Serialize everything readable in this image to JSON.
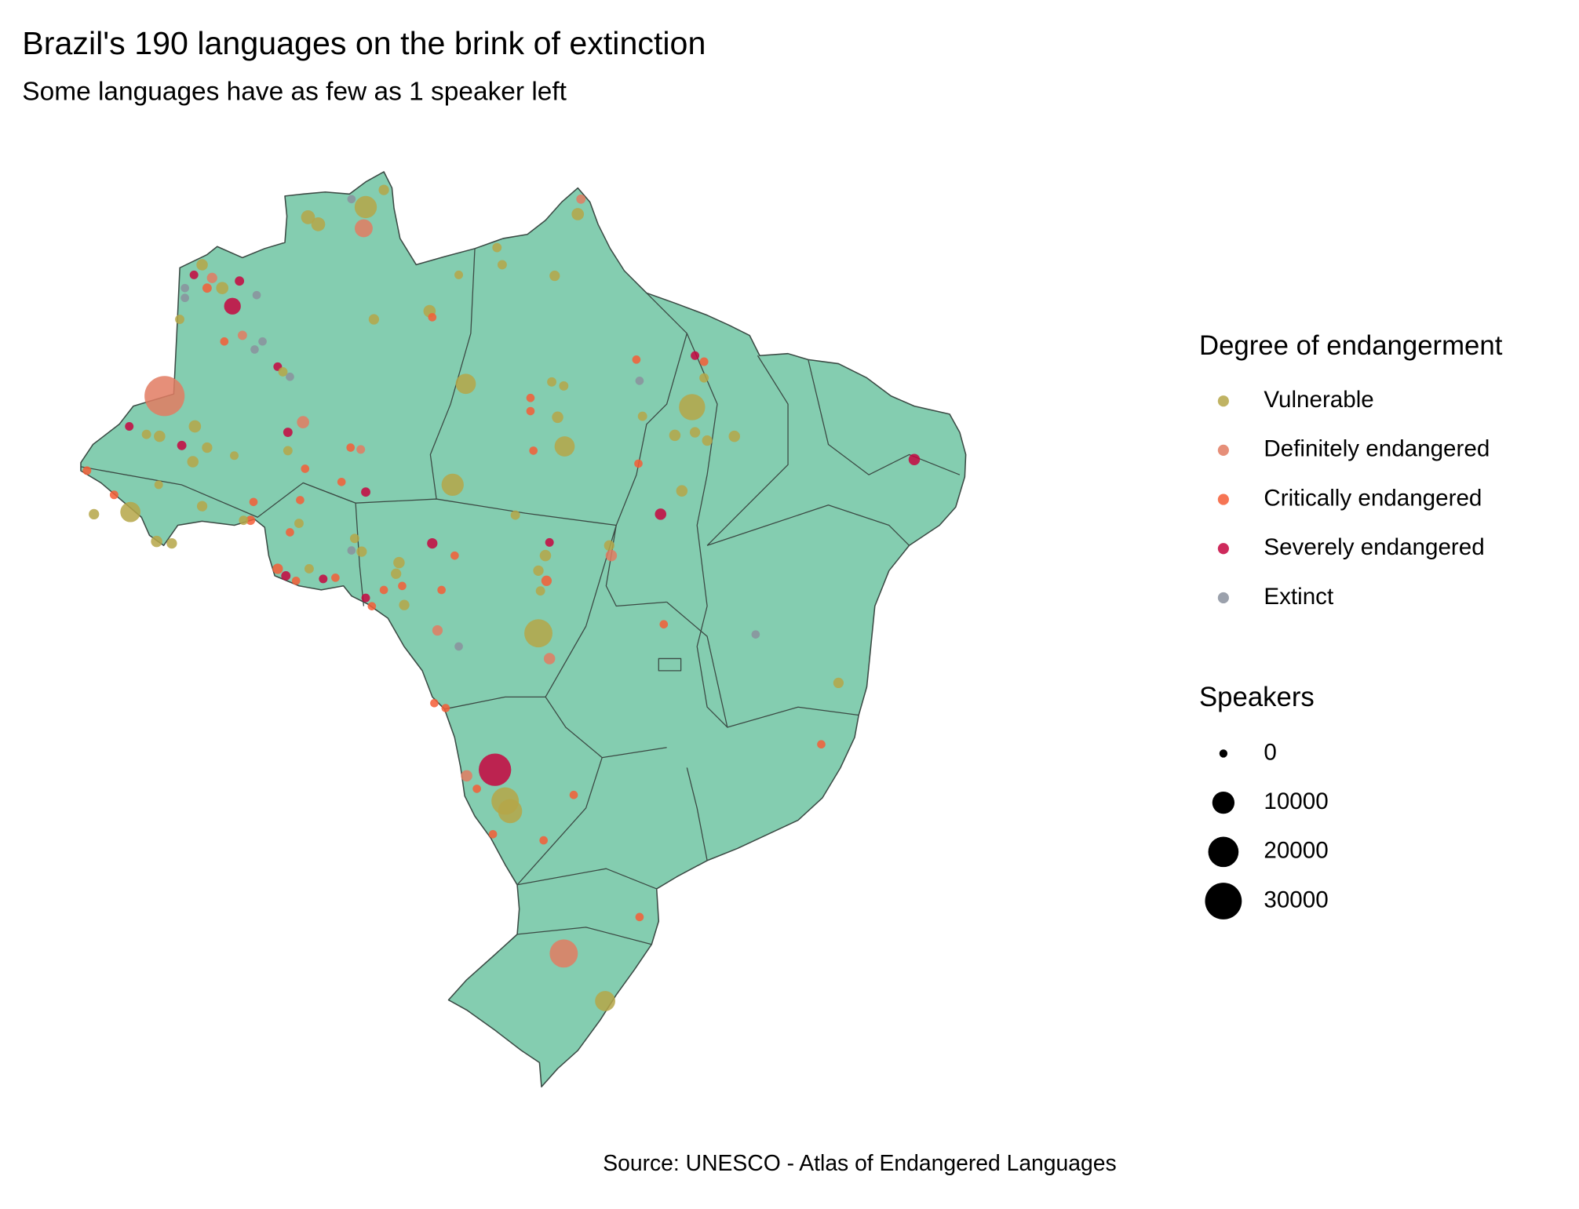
{
  "chart_data": {
    "type": "map",
    "title": "Brazil's 190 languages on the brink of extinction",
    "subtitle": "Some languages have as few as 1 speaker left",
    "caption": "Source: UNESCO - Atlas of Endangered Languages",
    "color_legend_title": "Degree of endangerment",
    "categories": [
      "Vulnerable",
      "Definitely endangered",
      "Critically endangered",
      "Severely endangered",
      "Extinct"
    ],
    "colors": [
      "#b5a648",
      "#e27b62",
      "#f45d36",
      "#c5053f",
      "#8a919e"
    ],
    "size_legend_title": "Speakers",
    "size_ticks": [
      0,
      10000,
      20000,
      30000
    ],
    "points": {
      "lon": [
        -63.87,
        -63.42,
        -61.32,
        -61.41,
        -60.52,
        -61.95,
        -51.95,
        -51.81,
        -55.52,
        -55.29,
        -52.97,
        -57.21,
        -58.5,
        -58.38,
        -60.96,
        -68.55,
        -68.91,
        -67.21,
        -66.9,
        -68.11,
        -68.33,
        -67.66,
        -69.31,
        -69.31,
        -66.14,
        -69.54,
        -66.77,
        -67.57,
        -65.88,
        -66.23,
        -70.21,
        -65.21,
        -64.67,
        -64.98,
        -64.09,
        -64.76,
        -68.87,
        -71.77,
        -71.01,
        -70.43,
        -69.45,
        -68.33,
        -68.96,
        -67.13,
        -64.76,
        -64.0,
        -61.99,
        -61.54,
        -61.32,
        -62.39,
        -73.64,
        -72.44,
        -73.33,
        -71.72,
        -70.47,
        -68.55,
        -70.56,
        -69.89,
        -66.28,
        -66.41,
        -66.72,
        -64.22,
        -64.27,
        -64.67,
        -65.21,
        -64.85,
        -64.4,
        -63.82,
        -63.2,
        -62.66,
        -61.81,
        -61.5,
        -61.95,
        -61.32,
        -61.05,
        -60.52,
        -59.85,
        -59.98,
        -59.71,
        -59.62,
        -58.38,
        -57.39,
        -57.97,
        -58.15,
        -57.21,
        -57.48,
        -56.9,
        -54.71,
        -54.04,
        -54.04,
        -53.1,
        -52.57,
        -52.84,
        -52.53,
        -53.91,
        -49.36,
        -49.22,
        -49.09,
        -49.27,
        -46.9,
        -47.66,
        -46.77,
        -46.23,
        -45.03,
        -46.37,
        -46.37,
        -46.77,
        -47.35,
        -48.29,
        -50.56,
        -50.47,
        -53.2,
        -53.38,
        -53.69,
        -53.33,
        -53.6,
        -53.69,
        -53.2,
        -48.15,
        -44.09,
        -37.08,
        -40.43,
        -41.19,
        -58.29,
        -57.79,
        -55.61,
        -56.86,
        -56.41,
        -55.16,
        -54.94,
        -55.7,
        -52.13,
        -53.46,
        -49.22,
        -52.57,
        -50.74
      ],
      "lat": [
        3.37,
        3.07,
        3.8,
        2.9,
        4.53,
        4.14,
        3.5,
        4.14,
        2.08,
        1.35,
        0.88,
        0.92,
        -0.62,
        -0.88,
        -0.97,
        1.35,
        0.92,
        -0.41,
        0.66,
        0.79,
        0.36,
        0.36,
        0.36,
        -0.06,
        0.06,
        -0.97,
        -1.65,
        -1.91,
        -1.91,
        -2.25,
        -4.23,
        -2.98,
        -3.41,
        -3.2,
        -5.34,
        -5.77,
        -5.52,
        -5.52,
        -5.86,
        -5.94,
        -6.33,
        -6.42,
        -7.02,
        -6.76,
        -6.55,
        -7.32,
        -6.42,
        -6.5,
        -8.31,
        -7.88,
        -7.4,
        -8.43,
        -9.25,
        -9.16,
        -8.0,
        -8.91,
        -10.41,
        -10.49,
        -8.73,
        -9.51,
        -9.51,
        -8.65,
        -9.64,
        -10.02,
        -11.57,
        -11.87,
        -12.08,
        -11.57,
        -12.0,
        -11.95,
        -10.28,
        -10.84,
        -10.79,
        -12.81,
        -13.16,
        -12.47,
        -11.31,
        -11.78,
        -12.3,
        -13.11,
        -10.49,
        -11.01,
        -12.47,
        -14.19,
        -14.87,
        -8.0,
        -3.71,
        -9.29,
        -4.31,
        -4.87,
        -3.63,
        -3.8,
        -5.13,
        -6.37,
        -6.55,
        -2.68,
        -3.58,
        -5.09,
        -7.1,
        -4.7,
        -5.9,
        -5.77,
        -6.12,
        -5.94,
        -3.46,
        -2.77,
        -2.51,
        -8.26,
        -9.25,
        -10.58,
        -11.01,
        -10.45,
        -11.01,
        -11.65,
        -12.08,
        -12.51,
        -14.31,
        -15.39,
        -13.93,
        -14.36,
        -6.93,
        -16.42,
        -19.03,
        -17.28,
        -17.49,
        -20.11,
        -20.37,
        -20.92,
        -21.44,
        -21.87,
        -22.85,
        -21.18,
        -23.11,
        -26.37,
        -27.92,
        -29.94
      ],
      "speakers": [
        3000,
        3000,
        10000,
        6000,
        1000,
        100,
        2000,
        500,
        500,
        500,
        1000,
        200,
        2000,
        100,
        1000,
        1500,
        200,
        5000,
        500,
        1000,
        500,
        2000,
        100,
        100,
        100,
        500,
        500,
        100,
        100,
        100,
        36000,
        200,
        100,
        500,
        2000,
        500,
        2000,
        200,
        500,
        1500,
        500,
        1000,
        1500,
        200,
        500,
        100,
        100,
        200,
        500,
        100,
        200,
        200,
        1000,
        8000,
        200,
        1000,
        1500,
        1000,
        100,
        500,
        500,
        100,
        500,
        100,
        1000,
        500,
        100,
        500,
        200,
        100,
        500,
        1000,
        100,
        200,
        100,
        100,
        1500,
        1000,
        100,
        1000,
        1000,
        100,
        100,
        1000,
        100,
        10000,
        8000,
        500,
        100,
        100,
        500,
        500,
        1500,
        8000,
        100,
        100,
        100,
        500,
        100,
        14500,
        1500,
        1000,
        1000,
        1500,
        500,
        200,
        200,
        1500,
        1500,
        1000,
        1500,
        200,
        1500,
        1000,
        1000,
        500,
        17000,
        1500,
        100,
        100,
        1500,
        1000,
        100,
        100,
        100,
        23000,
        1500,
        100,
        16000,
        12000,
        100,
        100,
        100,
        100,
        17000,
        8000
      ],
      "status": [
        "Vulnerable",
        "Vulnerable",
        "Vulnerable",
        "Definitely endangered",
        "Vulnerable",
        "Extinct",
        "Vulnerable",
        "Definitely endangered",
        "Vulnerable",
        "Vulnerable",
        "Vulnerable",
        "Vulnerable",
        "Vulnerable",
        "Critically endangered",
        "Vulnerable",
        "Vulnerable",
        "Severely endangered",
        "Severely endangered",
        "Severely endangered",
        "Definitely endangered",
        "Critically endangered",
        "Vulnerable",
        "Extinct",
        "Extinct",
        "Extinct",
        "Vulnerable",
        "Definitely endangered",
        "Critically endangered",
        "Extinct",
        "Extinct",
        "Definitely endangered",
        "Severely endangered",
        "Extinct",
        "Vulnerable",
        "Definitely endangered",
        "Severely endangered",
        "Vulnerable",
        "Severely endangered",
        "Vulnerable",
        "Vulnerable",
        "Severely endangered",
        "Vulnerable",
        "Vulnerable",
        "Vulnerable",
        "Vulnerable",
        "Critically endangered",
        "Critically endangered",
        "Definitely endangered",
        "Severely endangered",
        "Critically endangered",
        "Critically endangered",
        "Critically endangered",
        "Vulnerable",
        "Vulnerable",
        "Vulnerable",
        "Vulnerable",
        "Vulnerable",
        "Vulnerable",
        "Critically endangered",
        "Critically endangered",
        "Vulnerable",
        "Critically endangered",
        "Vulnerable",
        "Critically endangered",
        "Critically endangered",
        "Severely endangered",
        "Critically endangered",
        "Vulnerable",
        "Severely endangered",
        "Critically endangered",
        "Vulnerable",
        "Vulnerable",
        "Extinct",
        "Severely endangered",
        "Critically endangered",
        "Critically endangered",
        "Vulnerable",
        "Vulnerable",
        "Critically endangered",
        "Vulnerable",
        "Severely endangered",
        "Critically endangered",
        "Critically endangered",
        "Definitely endangered",
        "Extinct",
        "Vulnerable",
        "Vulnerable",
        "Vulnerable",
        "Critically endangered",
        "Critically endangered",
        "Vulnerable",
        "Vulnerable",
        "Vulnerable",
        "Vulnerable",
        "Critically endangered",
        "Critically endangered",
        "Extinct",
        "Vulnerable",
        "Critically endangered",
        "Vulnerable",
        "Vulnerable",
        "Vulnerable",
        "Vulnerable",
        "Vulnerable",
        "Vulnerable",
        "Critically endangered",
        "Severely endangered",
        "Vulnerable",
        "Severely endangered",
        "Vulnerable",
        "Definitely endangered",
        "Severely endangered",
        "Vulnerable",
        "Vulnerable",
        "Critically endangered",
        "Vulnerable",
        "Vulnerable",
        "Definitely endangered",
        "Critically endangered",
        "Extinct",
        "Severely endangered",
        "Vulnerable",
        "Critically endangered",
        "Critically endangered",
        "Critically endangered",
        "Severely endangered",
        "Definitely endangered",
        "Critically endangered",
        "Vulnerable",
        "Vulnerable",
        "Critically endangered",
        "Critically endangered",
        "Critically endangered",
        "Critically endangered",
        "Definitely endangered",
        "Vulnerable"
      ]
    }
  }
}
